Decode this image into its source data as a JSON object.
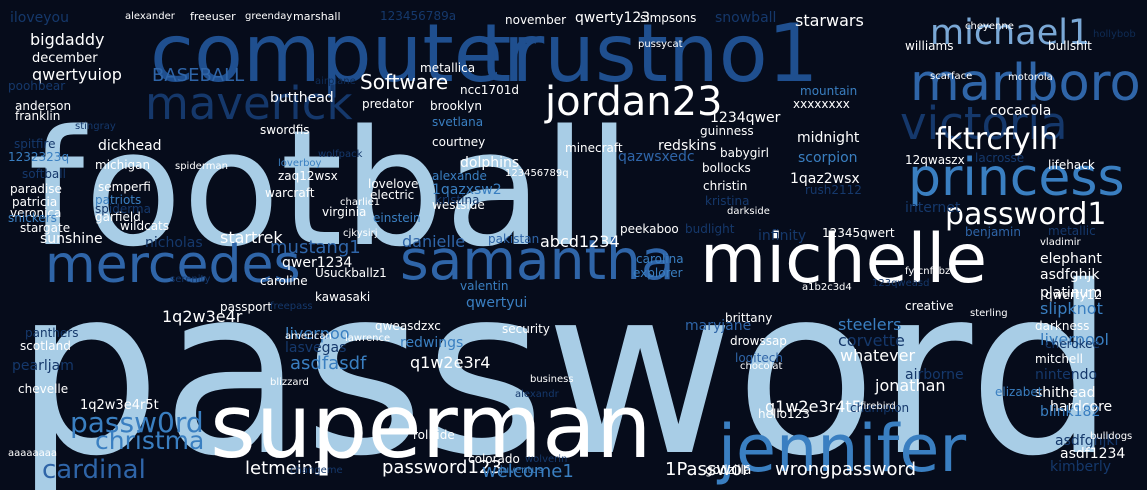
{
  "title": "",
  "colors": {
    "background": "#060c1b",
    "palette": [
      "#a8cde6",
      "#ffffff",
      "#1f4f8f",
      "#3a7fc1",
      "#2f65a8",
      "#15386b",
      "#0f2c55",
      "#7aa8d6"
    ]
  },
  "words": [
    "password",
    "football",
    "superman",
    "computer",
    "trustno1",
    "jennifer",
    "michelle",
    "marlboro",
    "samantha",
    "mercedes",
    "princess",
    "maverick",
    "victoria",
    "jordan23",
    "michael1",
    "password1",
    "fktrcfylh",
    "cardinal",
    "password123",
    "passw0rd",
    "christma",
    "letmein1",
    "welcome1",
    "1Passwor",
    "wrongpassword",
    "Software",
    "BASEBALL",
    "mustang1",
    "danielle",
    "abcd1234",
    "q1w2e3r4",
    "q1w2e3r4t5",
    "1q2w3e4r",
    "jonathan",
    "whatever",
    "steelers",
    "liverpool",
    "hardcore",
    "bigdaddy",
    "qwertyuiop",
    "iloveyou",
    "december",
    "qwerty123",
    "november",
    "starwars",
    "snowball",
    "butthead",
    "metallica",
    "cocacola",
    "williams",
    "bullshit",
    "brooklyn",
    "svetlana",
    "redskins",
    "minecraft",
    "1234qwer",
    "guinness",
    "midnight",
    "scorpion",
    "babygirl",
    "bollocks",
    "qazwsxedc",
    "12qwaszx",
    "lacrosse",
    "lifehack",
    "1qaz2wsx",
    "christin",
    "rush2112",
    "dolphins",
    "westside",
    "alexande",
    "1qazxsw2",
    "kristina",
    "internet",
    "garfield",
    "sunshine",
    "startrek",
    "virginia",
    "pakistan",
    "12345qwert",
    "benjamin",
    "metallic",
    "elephant",
    "asdfghjk",
    "platinum",
    "slipknot",
    "vladimir",
    "asdfasdf",
    "redwings",
    "qweasdzxc",
    "lasvegas",
    "liverpoo",
    "qwertyui",
    "logitech",
    "drowssap",
    "creative",
    "darkness",
    "qwerty12",
    "corvette",
    "cherokee",
    "mitchell",
    "nintendo",
    "airborne",
    "shithead",
    "blink182",
    "hello123",
    "champion",
    "asdfghjkl",
    "asdf1234",
    "godzilla",
    "kimberly",
    "bulldogs",
    "rolltide",
    "colorado",
    "juventus",
    "wolverin",
    "changeme",
    "1q2w3e4r5t",
    "aaaaaaaa",
    "alexander",
    "freeuser",
    "greenday",
    "marshall",
    "123456789a",
    "simpsons",
    "cheyenne",
    "hollybob",
    "pussycat",
    "poohbear",
    "airplane",
    "scarface",
    "motorola",
    "anderson",
    "franklin",
    "stingray",
    "swordfis",
    "predator",
    "ncc1701d",
    "xxxxxxxx",
    "mountain",
    "spitfire",
    "1232323q",
    "softball",
    "dickhead",
    "michigan",
    "semperfi",
    "patriots",
    "spiderma",
    "spiderman",
    "loverboy",
    "zaq12wsx",
    "warcraft",
    "wolfpack",
    "courtney",
    "paradise",
    "patricia",
    "veronica",
    "lovelove",
    "electric",
    "charlie1",
    "snickers",
    "stargate",
    "wildcats",
    "nicholas",
    "einstein",
    "cjkysirj",
    "carolina",
    "explorer",
    "peekaboo",
    "budlight",
    "darkside",
    "qwer1234",
    "Usuckballz1",
    "caroline",
    "kawasaki",
    "passport",
    "fyfcnfcbz",
    "a1b2c3d4",
    "123qweasd",
    "serenity",
    "freepass",
    "panthers",
    "scotland",
    "pearljam",
    "chevelle",
    "american",
    "lawrence",
    "blizzard",
    "valentin",
    "security",
    "maryjane",
    "brittany",
    "sterling",
    "123456789q",
    "chocolat",
    "business",
    "alexandr",
    "firebird",
    "infinity",
    "elizabet",
    "kristina"
  ]
}
